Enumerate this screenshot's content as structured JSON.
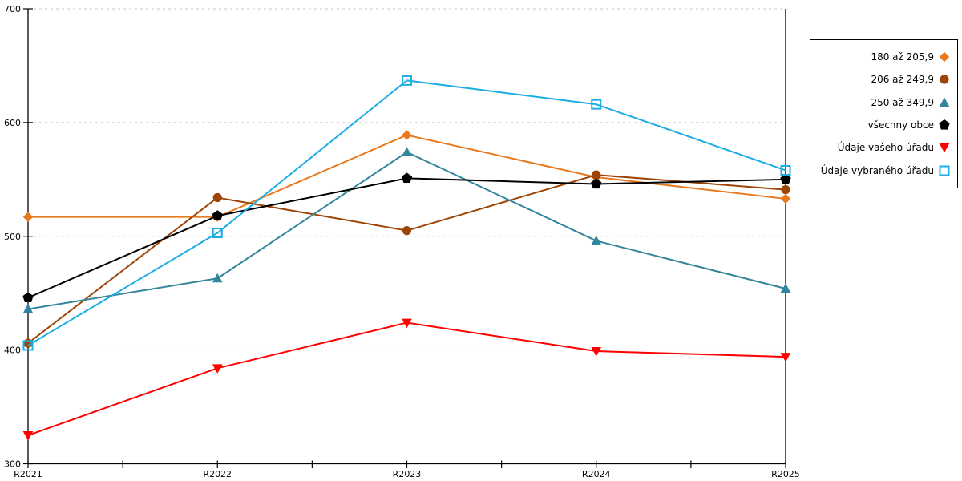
{
  "chart_data": {
    "type": "line",
    "categories": [
      "R2021",
      "R2022",
      "R2023",
      "R2024",
      "R2025"
    ],
    "series": [
      {
        "name": "180 až 205,9",
        "marker": "diamond",
        "color": "#E8791D",
        "values": [
          517,
          517,
          589,
          552,
          533
        ]
      },
      {
        "name": "206 až 249,9",
        "marker": "circle",
        "color": "#9C4507",
        "values": [
          406,
          534,
          505,
          554,
          541
        ]
      },
      {
        "name": "250 až 349,9",
        "marker": "triangle-up",
        "color": "#31859C",
        "values": [
          436,
          463,
          574,
          496,
          454
        ]
      },
      {
        "name": "všechny obce",
        "marker": "pentagon",
        "color": "#000000",
        "values": [
          446,
          518,
          551,
          546,
          550
        ]
      },
      {
        "name": "Údaje vašeho úřadu",
        "marker": "triangle-down",
        "color": "#FF0000",
        "values": [
          325,
          384,
          424,
          399,
          394
        ]
      },
      {
        "name": "Údaje vybraného úřadu",
        "marker": "square-open",
        "color": "#1CADE4",
        "values": [
          404,
          503,
          637,
          616,
          558
        ]
      }
    ],
    "ylim": [
      300,
      700
    ],
    "yticks": [
      300,
      400,
      500,
      600,
      700
    ],
    "grid": "horizontal-dashed",
    "x_minor_ticks": true,
    "legend_position": "right-outside"
  },
  "colors": {
    "axis": "#000000",
    "grid": "#C4C4C4",
    "background": "#FFFFFF"
  }
}
